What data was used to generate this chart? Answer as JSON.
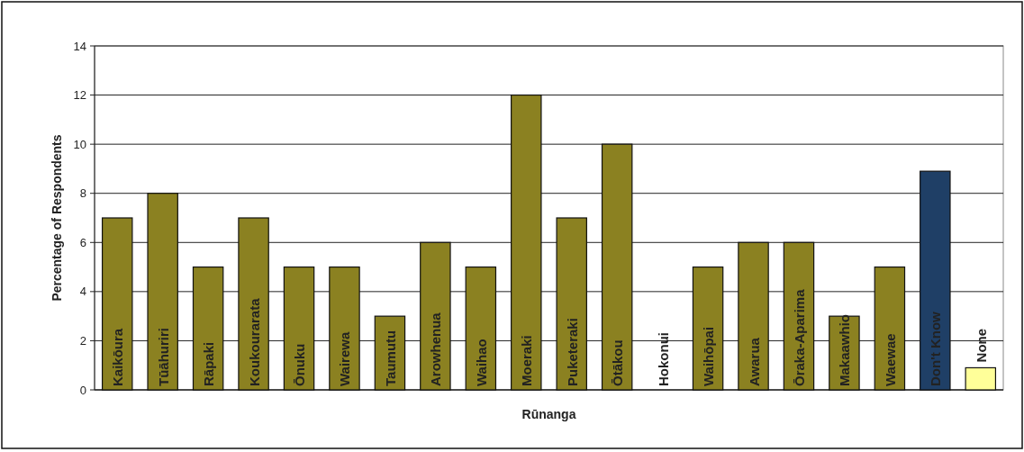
{
  "chart_data": {
    "type": "bar",
    "xlabel": "Rūnanga",
    "ylabel": "Percentage of Respondents",
    "categories": [
      "Kaikōura",
      "Tūāhuriri",
      "Rāpaki",
      "Koukourarata",
      "Ōnuku",
      "Wairewa",
      "Taumutu",
      "Arowhenua",
      "Waihao",
      "Moeraki",
      "Puketeraki",
      "Ōtākou",
      "Hokonui",
      "Waihōpai",
      "Awarua",
      "Ōraka-Aparima",
      "Makaawhio",
      "Waewae",
      "Don't Know",
      "None"
    ],
    "values": [
      7,
      8,
      5,
      7,
      5,
      5,
      3,
      6,
      5,
      12,
      7,
      10,
      0,
      5,
      6,
      6,
      3,
      5,
      8.9,
      0.9
    ],
    "colors": [
      "#8b8121",
      "#8b8121",
      "#8b8121",
      "#8b8121",
      "#8b8121",
      "#8b8121",
      "#8b8121",
      "#8b8121",
      "#8b8121",
      "#8b8121",
      "#8b8121",
      "#8b8121",
      "#8b8121",
      "#8b8121",
      "#8b8121",
      "#8b8121",
      "#8b8121",
      "#8b8121",
      "#1f3f66",
      "#ffff99"
    ],
    "ylim": [
      0,
      14
    ],
    "yticks": [
      0,
      2,
      4,
      6,
      8,
      10,
      12,
      14
    ],
    "grid": "y"
  }
}
